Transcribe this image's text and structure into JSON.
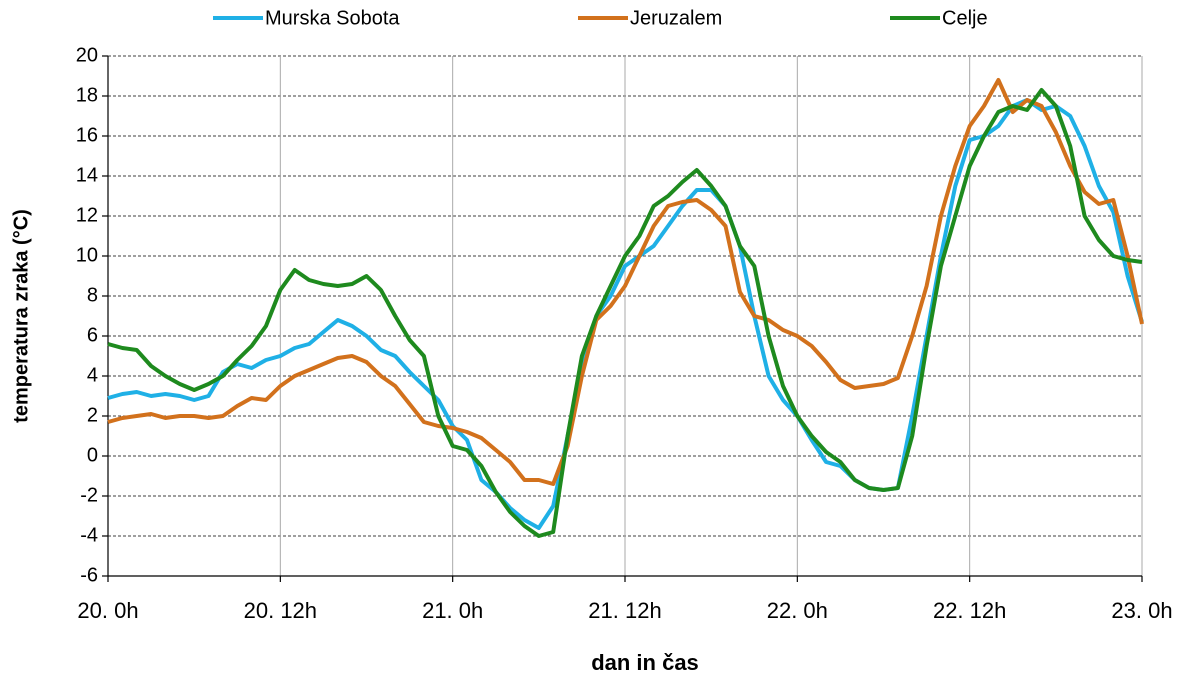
{
  "chart_data": {
    "type": "line",
    "ylabel": "temperatura zraka (°C)",
    "xlabel": "dan in čas",
    "x": [
      0,
      1,
      2,
      3,
      4,
      5,
      6,
      7,
      8,
      9,
      10,
      11,
      12,
      13,
      14,
      15,
      16,
      17,
      18,
      19,
      20,
      21,
      22,
      23,
      24,
      25,
      26,
      27,
      28,
      29,
      30,
      31,
      32,
      33,
      34,
      35,
      36,
      37,
      38,
      39,
      40,
      41,
      42,
      43,
      44,
      45,
      46,
      47,
      48,
      49,
      50,
      51,
      52,
      53,
      54,
      55,
      56,
      57,
      58,
      59,
      60,
      61,
      62,
      63,
      64,
      65,
      66,
      67,
      68,
      69,
      70,
      71,
      72
    ],
    "xlim": [
      0,
      72
    ],
    "xticks": [
      {
        "value": 0,
        "label": "20. 0h"
      },
      {
        "value": 12,
        "label": "20. 12h"
      },
      {
        "value": 24,
        "label": "21. 0h"
      },
      {
        "value": 36,
        "label": "21. 12h"
      },
      {
        "value": 48,
        "label": "22. 0h"
      },
      {
        "value": 60,
        "label": "22. 12h"
      },
      {
        "value": 72,
        "label": "23. 0h"
      }
    ],
    "ylim": [
      -6,
      20
    ],
    "yticks": [
      -6,
      -4,
      -2,
      0,
      2,
      4,
      6,
      8,
      10,
      12,
      14,
      16,
      18,
      20
    ],
    "grid": true,
    "legend": "top",
    "series": [
      {
        "name": "Murska Sobota",
        "color": "#1fb0e6",
        "values": [
          2.9,
          3.1,
          3.2,
          3.0,
          3.1,
          3.0,
          2.8,
          3.0,
          4.2,
          4.6,
          4.4,
          4.8,
          5.0,
          5.4,
          5.6,
          6.2,
          6.8,
          6.5,
          6.0,
          5.3,
          5.0,
          4.2,
          3.5,
          2.8,
          1.5,
          0.8,
          -1.2,
          -1.8,
          -2.6,
          -3.2,
          -3.6,
          -2.5,
          1.0,
          4.5,
          7.0,
          8.0,
          9.5,
          10.0,
          10.5,
          11.5,
          12.5,
          13.3,
          13.3,
          12.5,
          10.5,
          7.0,
          4.0,
          2.8,
          2.0,
          0.8,
          -0.3,
          -0.5,
          -1.2,
          -1.6,
          -1.7,
          -1.6,
          2.0,
          6.0,
          10.0,
          13.5,
          15.8,
          16.0,
          16.5,
          17.5,
          17.8,
          17.3,
          17.5,
          17.0,
          15.5,
          13.5,
          12.2,
          9.0,
          6.7
        ]
      },
      {
        "name": "Jeruzalem",
        "color": "#d2711c",
        "values": [
          1.7,
          1.9,
          2.0,
          2.1,
          1.9,
          2.0,
          2.0,
          1.9,
          2.0,
          2.5,
          2.9,
          2.8,
          3.5,
          4.0,
          4.3,
          4.6,
          4.9,
          5.0,
          4.7,
          4.0,
          3.5,
          2.6,
          1.7,
          1.5,
          1.4,
          1.2,
          0.9,
          0.3,
          -0.3,
          -1.2,
          -1.2,
          -1.4,
          0.5,
          4.0,
          6.8,
          7.5,
          8.5,
          10.0,
          11.5,
          12.5,
          12.7,
          12.8,
          12.3,
          11.5,
          8.2,
          7.0,
          6.8,
          6.3,
          6.0,
          5.5,
          4.7,
          3.8,
          3.4,
          3.5,
          3.6,
          3.9,
          6.0,
          8.5,
          12.0,
          14.5,
          16.5,
          17.5,
          18.8,
          17.2,
          17.8,
          17.5,
          16.2,
          14.5,
          13.2,
          12.6,
          12.8,
          10.0,
          6.6
        ]
      },
      {
        "name": "Celje",
        "color": "#1e8a1e",
        "values": [
          5.6,
          5.4,
          5.3,
          4.5,
          4.0,
          3.6,
          3.3,
          3.6,
          4.0,
          4.8,
          5.5,
          6.5,
          8.3,
          9.3,
          8.8,
          8.6,
          8.5,
          8.6,
          9.0,
          8.3,
          7.0,
          5.8,
          5.0,
          2.0,
          0.5,
          0.3,
          -0.5,
          -1.8,
          -2.8,
          -3.5,
          -4.0,
          -3.8,
          1.0,
          5.0,
          7.0,
          8.5,
          10.0,
          11.0,
          12.5,
          13.0,
          13.7,
          14.3,
          13.5,
          12.5,
          10.5,
          9.5,
          6.0,
          3.5,
          2.0,
          1.0,
          0.2,
          -0.3,
          -1.2,
          -1.6,
          -1.7,
          -1.6,
          1.0,
          5.5,
          9.5,
          12.0,
          14.5,
          16.0,
          17.2,
          17.5,
          17.3,
          18.3,
          17.5,
          15.5,
          12.0,
          10.8,
          10.0,
          9.8,
          9.7
        ]
      }
    ]
  }
}
